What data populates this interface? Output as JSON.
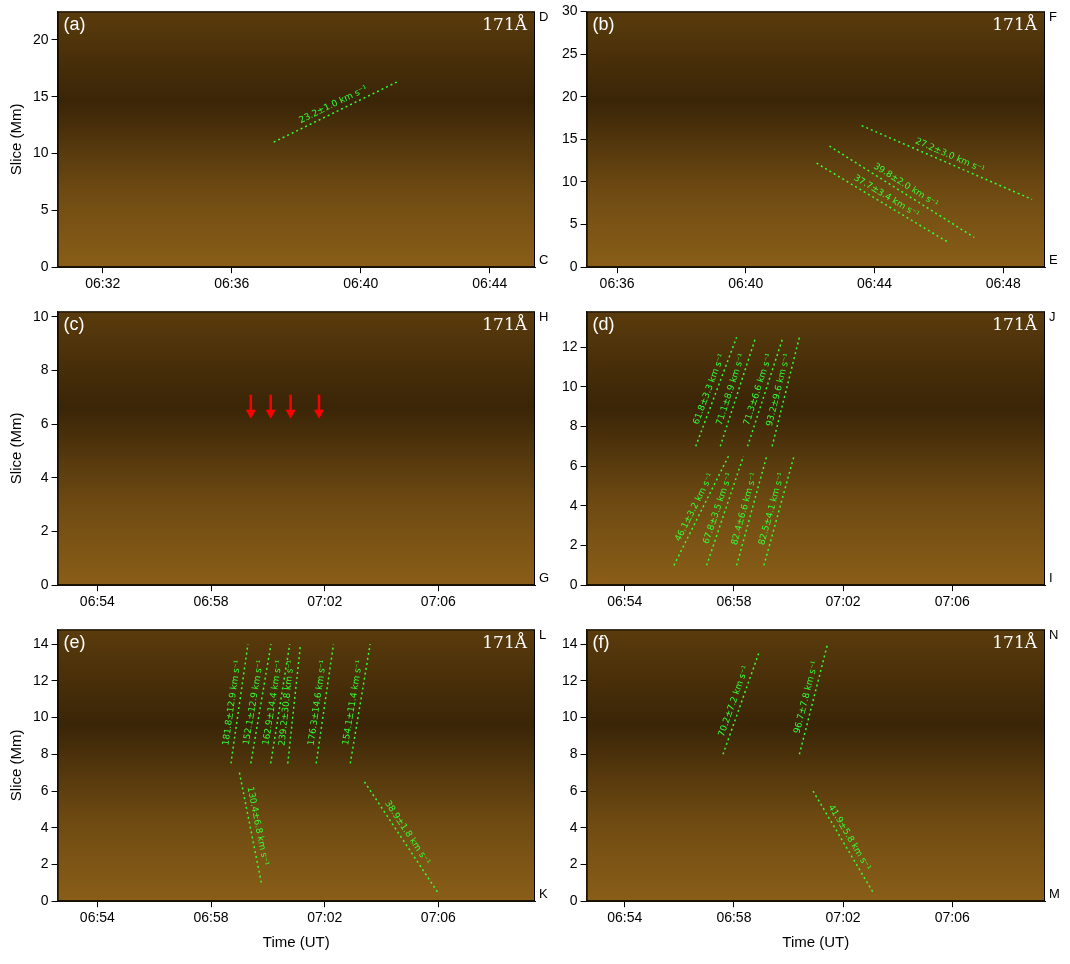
{
  "chart_data": [
    {
      "type": "line",
      "title": "(a)",
      "subtitle": "171Å",
      "corner_labels": [
        "D",
        "C"
      ],
      "y_label": "Slice (Mm)",
      "xlim": [
        390.6,
        405.4
      ],
      "xticks": [
        {
          "value": 392,
          "label": "06:32"
        },
        {
          "value": 396,
          "label": "06:36"
        },
        {
          "value": 400,
          "label": "06:40"
        },
        {
          "value": 404,
          "label": "06:44"
        }
      ],
      "ylim": [
        0,
        22.5
      ],
      "yticks": [
        0,
        5,
        10,
        15,
        20
      ],
      "grid": false,
      "color": "#33ff33",
      "line_style": "dotted",
      "series": [
        {
          "name": "23.2±1.0 km s⁻¹",
          "x": [
            397.3,
            401.2
          ],
          "values": [
            11,
            16.4
          ]
        }
      ]
    },
    {
      "type": "line",
      "title": "(b)",
      "subtitle": "171Å",
      "corner_labels": [
        "F",
        "E"
      ],
      "xlim": [
        395.05,
        409.3
      ],
      "xticks": [
        {
          "value": 396,
          "label": "06:36"
        },
        {
          "value": 400,
          "label": "06:40"
        },
        {
          "value": 404,
          "label": "06:44"
        },
        {
          "value": 408,
          "label": "06:48"
        }
      ],
      "ylim": [
        0,
        30
      ],
      "yticks": [
        0,
        5,
        10,
        15,
        20,
        25,
        30
      ],
      "grid": false,
      "color": "#33ff33",
      "line_style": "dotted",
      "series": [
        {
          "name": "27.2±3.0 km s⁻¹",
          "x": [
            403.6,
            408.9
          ],
          "values": [
            16.6,
            7.95
          ]
        },
        {
          "name": "39.8±2.0 km s⁻¹",
          "x": [
            402.6,
            407.1
          ],
          "values": [
            14.2,
            3.5
          ]
        },
        {
          "name": "37.7±3.4 km s⁻¹",
          "x": [
            402.2,
            406.3
          ],
          "values": [
            12.2,
            2.9
          ]
        }
      ]
    },
    {
      "type": "line",
      "title": "(c)",
      "subtitle": "171Å",
      "corner_labels": [
        "H",
        "G"
      ],
      "y_label": "Slice (Mm)",
      "xlim": [
        412.6,
        429.4
      ],
      "xticks": [
        {
          "value": 414,
          "label": "06:54"
        },
        {
          "value": 418,
          "label": "06:58"
        },
        {
          "value": 422,
          "label": "07:02"
        },
        {
          "value": 426,
          "label": "07:06"
        }
      ],
      "ylim": [
        0,
        10.2
      ],
      "yticks": [
        0,
        2,
        4,
        6,
        8,
        10
      ],
      "grid": false,
      "color": "#33ff33",
      "line_style": "dotted",
      "series": [],
      "arrows": {
        "color": "#ff0000",
        "x": [
          419.4,
          420.1,
          420.8,
          421.8
        ],
        "y": [
          6.2,
          6.2,
          6.2,
          6.2
        ]
      }
    },
    {
      "type": "line",
      "title": "(d)",
      "subtitle": "171Å",
      "corner_labels": [
        "J",
        "I"
      ],
      "xlim": [
        412.6,
        429.4
      ],
      "xticks": [
        {
          "value": 414,
          "label": "06:54"
        },
        {
          "value": 418,
          "label": "06:58"
        },
        {
          "value": 422,
          "label": "07:02"
        },
        {
          "value": 426,
          "label": "07:06"
        }
      ],
      "ylim": [
        0,
        13.8
      ],
      "yticks": [
        0,
        2,
        4,
        6,
        8,
        10,
        12
      ],
      "grid": false,
      "color": "#33ff33",
      "line_style": "dotted",
      "series": [
        {
          "name": "61.8±3.3 km s⁻¹",
          "x": [
            416.6,
            418.1
          ],
          "values": [
            7,
            12.5
          ]
        },
        {
          "name": "71.1±8.9 km s⁻¹",
          "x": [
            417.5,
            418.8
          ],
          "values": [
            7,
            12.5
          ]
        },
        {
          "name": "71.3±6.6 km s⁻¹",
          "x": [
            418.5,
            419.8
          ],
          "values": [
            7,
            12.5
          ]
        },
        {
          "name": "93.2±9.6 km s⁻¹",
          "x": [
            419.4,
            420.4
          ],
          "values": [
            7,
            12.5
          ]
        },
        {
          "name": "46.1±3.2 km s⁻¹",
          "x": [
            415.8,
            417.8
          ],
          "values": [
            1,
            6.5
          ]
        },
        {
          "name": "67.8±3.5 km s⁻¹",
          "x": [
            417.0,
            418.35
          ],
          "values": [
            1,
            6.5
          ]
        },
        {
          "name": "82.4±6.6 km s⁻¹",
          "x": [
            418.1,
            419.2
          ],
          "values": [
            1,
            6.5
          ]
        },
        {
          "name": "82.5±4.1 km s⁻¹",
          "x": [
            419.1,
            420.2
          ],
          "values": [
            1,
            6.5
          ]
        }
      ]
    },
    {
      "type": "line",
      "title": "(e)",
      "subtitle": "171Å",
      "corner_labels": [
        "L",
        "K"
      ],
      "y_label": "Slice (Mm)",
      "x_label": "Time (UT)",
      "xlim": [
        412.6,
        429.4
      ],
      "xticks": [
        {
          "value": 414,
          "label": "06:54"
        },
        {
          "value": 418,
          "label": "06:58"
        },
        {
          "value": 422,
          "label": "07:02"
        },
        {
          "value": 426,
          "label": "07:06"
        }
      ],
      "ylim": [
        0,
        14.8
      ],
      "yticks": [
        0,
        2,
        4,
        6,
        8,
        10,
        12,
        14
      ],
      "grid": false,
      "color": "#33ff33",
      "line_style": "dotted",
      "series": [
        {
          "name": "181.8±12.9 km s⁻¹",
          "x": [
            418.7,
            419.3
          ],
          "values": [
            7.5,
            14
          ]
        },
        {
          "name": "152.1±12.9 km s⁻¹",
          "x": [
            419.4,
            420.11
          ],
          "values": [
            7.5,
            14
          ]
        },
        {
          "name": "162.9±14.4 km s⁻¹",
          "x": [
            420.1,
            420.77
          ],
          "values": [
            7.5,
            14
          ]
        },
        {
          "name": "239.2±30.8 km s⁻¹",
          "x": [
            420.7,
            421.15
          ],
          "values": [
            7.5,
            14
          ]
        },
        {
          "name": "176.3±14.6 km s⁻¹",
          "x": [
            421.7,
            422.31
          ],
          "values": [
            7.5,
            14
          ]
        },
        {
          "name": "154.1±11.4 km s⁻¹",
          "x": [
            422.9,
            423.6
          ],
          "values": [
            7.5,
            14
          ]
        },
        {
          "name": "130.4±6.8 km s⁻¹",
          "x": [
            419.0,
            419.77
          ],
          "values": [
            7,
            1
          ]
        },
        {
          "name": "38.9±1.8 km s⁻¹",
          "x": [
            423.4,
            425.97
          ],
          "values": [
            6.5,
            0.5
          ]
        }
      ]
    },
    {
      "type": "line",
      "title": "(f)",
      "subtitle": "171Å",
      "corner_labels": [
        "N",
        "M"
      ],
      "x_label": "Time (UT)",
      "xlim": [
        412.6,
        429.4
      ],
      "xticks": [
        {
          "value": 414,
          "label": "06:54"
        },
        {
          "value": 418,
          "label": "06:58"
        },
        {
          "value": 422,
          "label": "07:02"
        },
        {
          "value": 426,
          "label": "07:06"
        }
      ],
      "ylim": [
        0,
        14.8
      ],
      "yticks": [
        0,
        2,
        4,
        6,
        8,
        10,
        12,
        14
      ],
      "grid": false,
      "color": "#33ff33",
      "line_style": "dotted",
      "series": [
        {
          "name": "70.2±7.2 km s⁻¹",
          "x": [
            417.6,
            418.91
          ],
          "values": [
            8,
            13.5
          ]
        },
        {
          "name": "96.7±7.8 km s⁻¹",
          "x": [
            420.4,
            421.43
          ],
          "values": [
            8,
            14
          ]
        },
        {
          "name": "41.9±5.8 km s⁻¹",
          "x": [
            420.9,
            423.09
          ],
          "values": [
            6,
            0.5
          ]
        }
      ]
    }
  ]
}
